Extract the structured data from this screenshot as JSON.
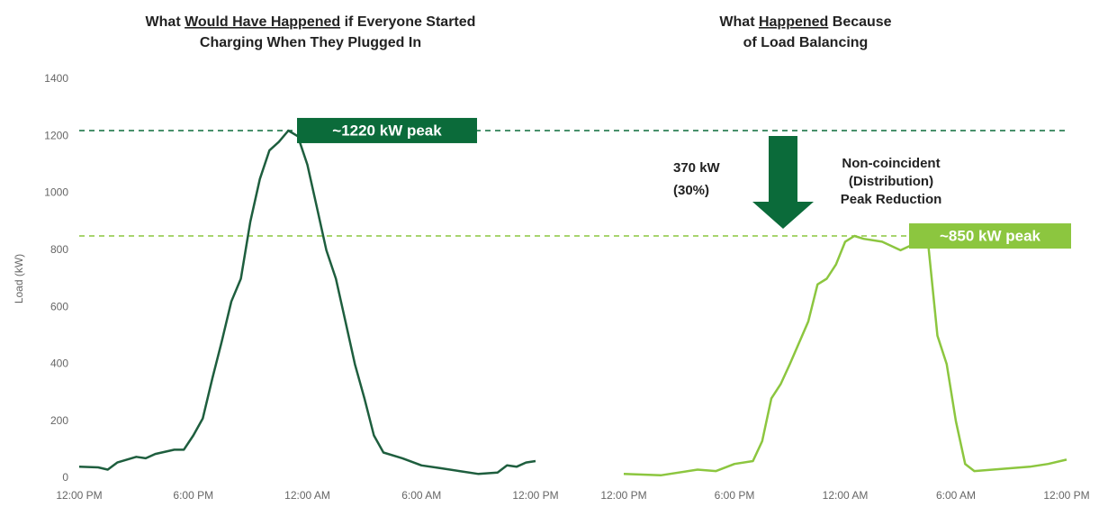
{
  "chart_data": [
    {
      "type": "line",
      "title": [
        [
          {
            "text": "What "
          },
          {
            "text": "Would Have Happened",
            "underline": true
          },
          {
            "text": " if Everyone Started"
          }
        ],
        [
          {
            "text": "Charging When They Plugged In"
          }
        ]
      ],
      "ylabel": "Load (kW)",
      "x": [
        0,
        1,
        1.5,
        2,
        3,
        3.5,
        4,
        5,
        5.5,
        6,
        6.5,
        7,
        7.5,
        8,
        8.5,
        9,
        9.5,
        10,
        10.5,
        11,
        11.5,
        12,
        12.5,
        13,
        13.5,
        14,
        14.5,
        15,
        15.5,
        16,
        17,
        18,
        19,
        20,
        21,
        22,
        22.5,
        23,
        23.5,
        24
      ],
      "values": [
        40,
        38,
        30,
        55,
        75,
        70,
        85,
        100,
        100,
        150,
        210,
        350,
        480,
        620,
        700,
        900,
        1050,
        1150,
        1180,
        1220,
        1200,
        1100,
        950,
        800,
        700,
        550,
        400,
        280,
        150,
        90,
        70,
        45,
        35,
        25,
        15,
        20,
        45,
        40,
        55,
        60
      ],
      "color": "#1e5e3e",
      "xlim": [
        0,
        24
      ],
      "xticks": [
        {
          "value": 0,
          "label": "12:00 PM"
        },
        {
          "value": 6,
          "label": "6:00 PM"
        },
        {
          "value": 12,
          "label": "12:00 AM"
        },
        {
          "value": 18,
          "label": "6:00 AM"
        },
        {
          "value": 24,
          "label": "12:00 PM"
        }
      ],
      "ylim": [
        0,
        1400
      ],
      "yticks": [
        0,
        200,
        400,
        600,
        800,
        1000,
        1200,
        1400
      ]
    },
    {
      "type": "line",
      "title": [
        [
          {
            "text": "What "
          },
          {
            "text": "Happened",
            "underline": true
          },
          {
            "text": " Because"
          }
        ],
        [
          {
            "text": "of Load Balancing"
          }
        ]
      ],
      "x": [
        0,
        2,
        4,
        5,
        6,
        7,
        7.5,
        8,
        8.5,
        9,
        10,
        10.5,
        11,
        11.5,
        12,
        12.5,
        13,
        14,
        15,
        16,
        16.5,
        17,
        17.5,
        18,
        18.5,
        19,
        20,
        21,
        22,
        23,
        24
      ],
      "values": [
        15,
        10,
        30,
        25,
        50,
        60,
        130,
        280,
        330,
        400,
        550,
        680,
        700,
        750,
        830,
        850,
        840,
        830,
        800,
        830,
        820,
        500,
        400,
        200,
        50,
        25,
        30,
        35,
        40,
        50,
        65
      ],
      "color": "#8cc63f",
      "xlim": [
        0,
        24
      ],
      "xticks": [
        {
          "value": 0,
          "label": "12:00 PM"
        },
        {
          "value": 6,
          "label": "6:00 PM"
        },
        {
          "value": 12,
          "label": "12:00 AM"
        },
        {
          "value": 18,
          "label": "6:00 AM"
        },
        {
          "value": 24,
          "label": "12:00 PM"
        }
      ],
      "ylim": [
        0,
        1400
      ]
    }
  ],
  "reference_lines": [
    {
      "value": 1220,
      "label": "~1220 kW peak",
      "color": "#0b6b3a"
    },
    {
      "value": 850,
      "label": "~850 kW peak",
      "color": "#8cc63f"
    }
  ],
  "annotations": {
    "reduction": [
      "370 kW",
      "(30%)"
    ],
    "description": [
      "Non-coincident",
      "(Distribution)",
      "Peak Reduction"
    ]
  }
}
